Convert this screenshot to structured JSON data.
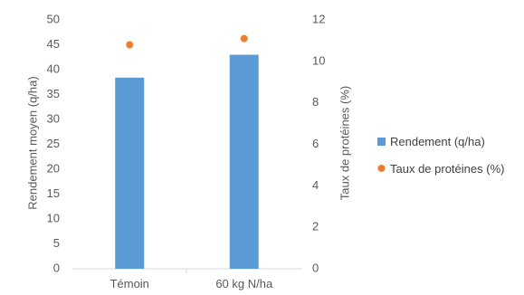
{
  "chart_data": {
    "type": "bar",
    "categories": [
      "Témoin",
      "60 kg N/ha"
    ],
    "series": [
      {
        "name": "Rendement (q/ha)",
        "type": "bar",
        "axis": "left",
        "values": [
          38.4,
          43.0
        ],
        "color": "#5B9BD5"
      },
      {
        "name": "Taux de protéines (%)",
        "type": "scatter",
        "axis": "right",
        "values": [
          10.8,
          11.1
        ],
        "color": "#ED7D31"
      }
    ],
    "ylabel": "Rendement moyen (q/ha)",
    "y2label": "Taux de protéines (%)",
    "ylim": [
      0,
      50
    ],
    "y2lim": [
      0,
      12
    ],
    "yticks": [
      "0",
      "5",
      "10",
      "15",
      "20",
      "25",
      "30",
      "35",
      "40",
      "45",
      "50"
    ],
    "y2ticks": [
      "0",
      "2",
      "4",
      "6",
      "8",
      "10",
      "12"
    ],
    "grid": false,
    "legend": "right"
  }
}
